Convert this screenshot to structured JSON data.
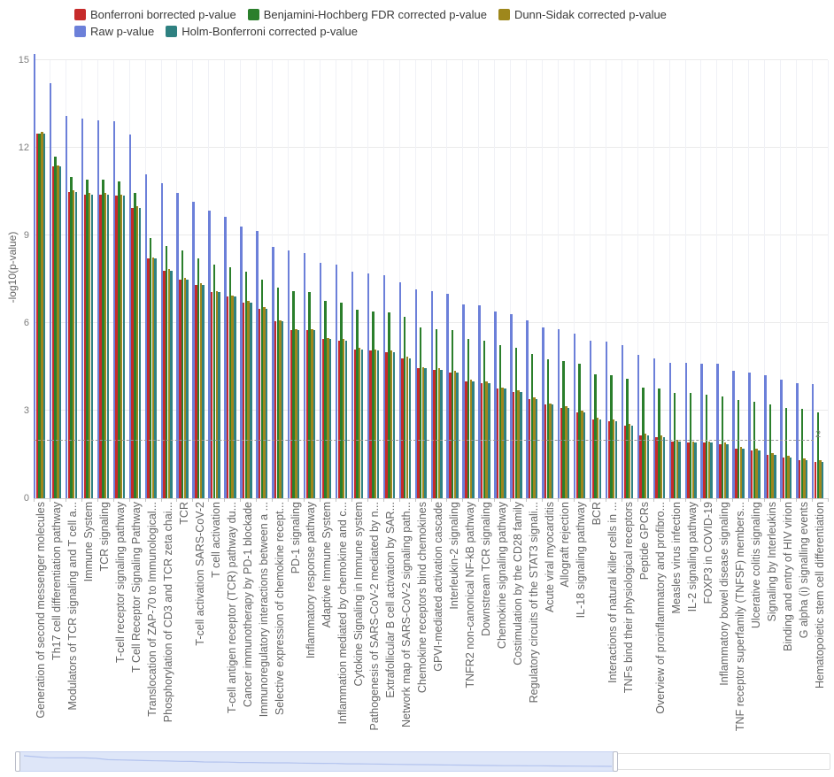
{
  "legend": {
    "items": [
      {
        "key": "bonferroni",
        "label": "Bonferroni borrected p-value",
        "color": "#c62b2b"
      },
      {
        "key": "bh_fdr",
        "label": "Benjamini-Hochberg FDR corrected p-value",
        "color": "#2b7f2c"
      },
      {
        "key": "dunn_sidak",
        "label": "Dunn-Sidak corrected p-value",
        "color": "#9e871c"
      },
      {
        "key": "raw",
        "label": "Raw p-value",
        "color": "#6c80d9"
      },
      {
        "key": "holm",
        "label": "Holm-Bonferroni corrected p-value",
        "color": "#2f8181"
      }
    ],
    "rows": [
      [
        0,
        1,
        2
      ],
      [
        3,
        4
      ]
    ]
  },
  "axes": {
    "y_label": "-log10(p-value)",
    "y_ticks": [
      0,
      3,
      6,
      9,
      12,
      15
    ],
    "threshold_value": 2,
    "threshold_label": "2"
  },
  "chart_data": {
    "type": "bar",
    "title": "",
    "xlabel": "",
    "ylabel": "-log10(p-value)",
    "ylim": [
      0,
      15.5
    ],
    "y_ticks": [
      0,
      3,
      6,
      9,
      12,
      15
    ],
    "grid": true,
    "legend_position": "top-left",
    "threshold_line": 2,
    "categories": [
      "Generation of second messenger molecules",
      "Th17 cell differentiation pathway",
      "Modulators of TCR signaling and T cell a...",
      "Immune System",
      "TCR signaling",
      "T-cell receptor signaling pathway",
      "T Cell Receptor Signaling Pathway",
      "Translocation of ZAP-70 to Immunological...",
      "Phosphorylation of CD3 and TCR zeta chai...",
      "TCR",
      "T-cell activation SARS-CoV-2",
      "T cell activation",
      "T-cell antigen receptor (TCR) pathway du...",
      "Cancer immunotherapy by PD-1 blockade",
      "Immunoregulatory interactions between a ...",
      "Selective expression of chemokine recept...",
      "PD-1 signaling",
      "Inflammatory response pathway",
      "Adaptive Immune System",
      "Inflammation mediated by chemokine and c...",
      "Cytokine Signaling in Immune system",
      "Pathogenesis of SARS-CoV-2 mediated by n...",
      "Extrafollicular B cell activation by SAR...",
      "Network map of SARS-CoV-2 signaling path...",
      "Chemokine receptors bind chemokines",
      "GPVI-mediated activation cascade",
      "Interleukin-2 signaling",
      "TNFR2 non-canonical NF-kB pathway",
      "Downstream TCR signaling",
      "Chemokine signaling pathway",
      "Costimulation by the CD28 family",
      "Regulatory circuits of the STAT3 signali...",
      "Acute viral myocarditis",
      "Allograft rejection",
      "IL-18 signaling pathway",
      "BCR",
      "Interactions of natural killer cells in ...",
      "TNFs bind their physiological receptors",
      "Peptide GPCRs",
      "Overview of proinflammatory and profibro...",
      "Measles virus infection",
      "IL-2 signaling pathway",
      "FOXP3 in COVID-19",
      "Inflammatory bowel disease signaling",
      "TNF receptor superfamily (TNFSF) members...",
      "Ulcerative colitis signaling",
      "Signaling by Interleukins",
      "Binding and entry of HIV virion",
      "G alpha (i) signalling events",
      "Hematopoietic stem cell differentiation"
    ],
    "series": [
      {
        "key": "raw",
        "name": "Raw p-value",
        "color": "#6c80d9",
        "values": [
          15.2,
          14.2,
          13.1,
          13.0,
          12.95,
          12.9,
          12.45,
          11.1,
          10.8,
          10.45,
          10.15,
          9.85,
          9.65,
          9.3,
          9.15,
          8.6,
          8.5,
          8.4,
          8.05,
          8.0,
          7.75,
          7.7,
          7.65,
          7.4,
          7.15,
          7.1,
          7.0,
          6.65,
          6.6,
          6.4,
          6.3,
          6.1,
          5.85,
          5.8,
          5.65,
          5.4,
          5.35,
          5.25,
          4.9,
          4.8,
          4.65,
          4.65,
          4.6,
          4.6,
          4.35,
          4.3,
          4.2,
          4.05,
          3.95,
          3.9
        ]
      },
      {
        "key": "bonferroni",
        "name": "Bonferroni borrected p-value",
        "color": "#c62b2b",
        "values": [
          12.5,
          11.35,
          10.5,
          10.4,
          10.4,
          10.35,
          9.95,
          8.2,
          7.8,
          7.5,
          7.3,
          7.05,
          6.9,
          6.7,
          6.5,
          6.05,
          5.75,
          5.75,
          5.45,
          5.4,
          5.1,
          5.05,
          5.0,
          4.8,
          4.45,
          4.4,
          4.3,
          4.0,
          3.95,
          3.75,
          3.65,
          3.4,
          3.2,
          3.1,
          2.95,
          2.7,
          2.65,
          2.5,
          2.15,
          2.1,
          1.95,
          1.9,
          1.9,
          1.85,
          1.7,
          1.65,
          1.5,
          1.4,
          1.3,
          1.25
        ]
      },
      {
        "key": "bh_fdr",
        "name": "Benjamini-Hochberg FDR corrected p-value",
        "color": "#2b7f2c",
        "values": [
          12.5,
          11.7,
          11.0,
          10.9,
          10.9,
          10.85,
          10.45,
          8.9,
          8.65,
          8.5,
          8.2,
          8.0,
          7.9,
          7.75,
          7.5,
          7.2,
          7.1,
          7.05,
          6.75,
          6.7,
          6.45,
          6.4,
          6.35,
          6.2,
          5.85,
          5.8,
          5.75,
          5.45,
          5.4,
          5.25,
          5.15,
          4.95,
          4.75,
          4.7,
          4.6,
          4.25,
          4.2,
          4.1,
          3.8,
          3.75,
          3.6,
          3.6,
          3.55,
          3.5,
          3.35,
          3.3,
          3.2,
          3.1,
          3.05,
          2.95
        ]
      },
      {
        "key": "dunn_sidak",
        "name": "Dunn-Sidak corrected p-value",
        "color": "#9e871c",
        "values": [
          12.55,
          11.4,
          10.55,
          10.45,
          10.45,
          10.4,
          10.0,
          8.25,
          7.85,
          7.55,
          7.35,
          7.1,
          6.95,
          6.75,
          6.55,
          6.1,
          5.8,
          5.8,
          5.5,
          5.45,
          5.15,
          5.1,
          5.05,
          4.85,
          4.5,
          4.45,
          4.35,
          4.05,
          4.0,
          3.8,
          3.7,
          3.45,
          3.25,
          3.15,
          3.0,
          2.75,
          2.7,
          2.55,
          2.2,
          2.15,
          2.0,
          1.95,
          1.95,
          1.9,
          1.75,
          1.7,
          1.55,
          1.45,
          1.35,
          1.3
        ]
      },
      {
        "key": "holm",
        "name": "Holm-Bonferroni corrected p-value",
        "color": "#2f8181",
        "values": [
          12.5,
          11.35,
          10.5,
          10.4,
          10.4,
          10.35,
          9.95,
          8.2,
          7.8,
          7.5,
          7.3,
          7.05,
          6.9,
          6.7,
          6.5,
          6.05,
          5.75,
          5.75,
          5.45,
          5.4,
          5.1,
          5.05,
          5.0,
          4.8,
          4.45,
          4.4,
          4.3,
          4.0,
          3.95,
          3.75,
          3.65,
          3.4,
          3.2,
          3.1,
          2.95,
          2.7,
          2.65,
          2.5,
          2.15,
          2.1,
          1.95,
          1.9,
          1.9,
          1.85,
          1.7,
          1.65,
          1.5,
          1.4,
          1.3,
          1.25
        ]
      }
    ]
  },
  "navigator": {
    "selected_from_category_index": 0,
    "selected_to_category_index": 37
  }
}
